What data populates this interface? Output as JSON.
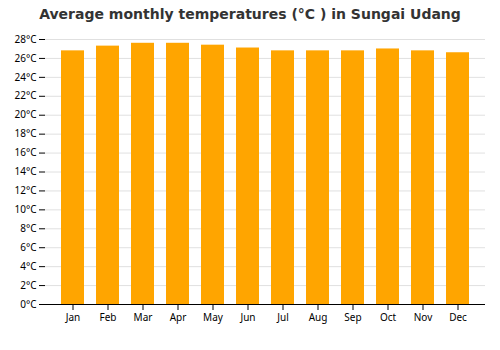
{
  "chart_data": {
    "type": "bar",
    "title": "Average monthly temperatures (°C ) in Sungai Udang",
    "categories": [
      "Jan",
      "Feb",
      "Mar",
      "Apr",
      "May",
      "Jun",
      "Jul",
      "Aug",
      "Sep",
      "Oct",
      "Nov",
      "Dec"
    ],
    "values": [
      26.8,
      27.3,
      27.6,
      27.6,
      27.4,
      27.1,
      26.8,
      26.8,
      26.8,
      27.0,
      26.8,
      26.6
    ],
    "color": "#FFA500",
    "ylim": [
      0,
      28
    ],
    "yticks": [
      {
        "value": 0,
        "label": "0°C"
      },
      {
        "value": 2,
        "label": "2°C"
      },
      {
        "value": 4,
        "label": "4°C"
      },
      {
        "value": 6,
        "label": "6°C"
      },
      {
        "value": 8,
        "label": "8°C"
      },
      {
        "value": 10,
        "label": "10°C"
      },
      {
        "value": 12,
        "label": "12°C"
      },
      {
        "value": 14,
        "label": "14°C"
      },
      {
        "value": 16,
        "label": "16°C"
      },
      {
        "value": 18,
        "label": "18°C"
      },
      {
        "value": 20,
        "label": "20°C"
      },
      {
        "value": 22,
        "label": "22°C"
      },
      {
        "value": 24,
        "label": "24°C"
      },
      {
        "value": 26,
        "label": "26°C"
      },
      {
        "value": 28,
        "label": "28°C"
      }
    ],
    "grid": true
  }
}
